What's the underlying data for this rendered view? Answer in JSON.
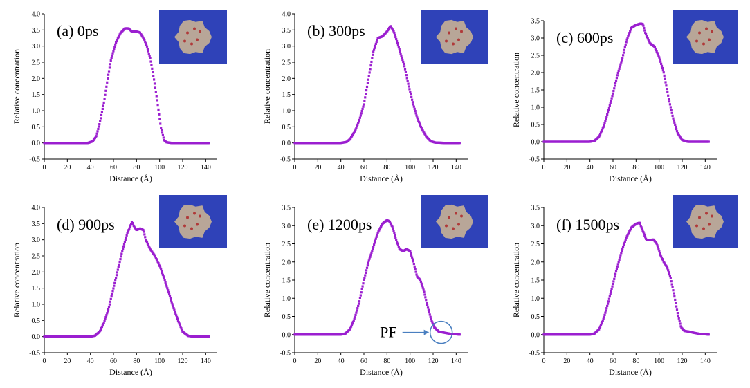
{
  "colors": {
    "series": "#9b1fd0",
    "inset_bg": "#2f42b8",
    "inset_blob": "#b8a698",
    "annotation": "#4a7fc0",
    "axis": "#000000"
  },
  "chart_data": [
    {
      "type": "scatter",
      "title": "(a) 0ps",
      "xlabel": "Distance (Å)",
      "ylabel": "Relative concentration",
      "xlim": [
        0,
        150
      ],
      "ylim": [
        -0.5,
        4.0
      ],
      "xticks": [
        0,
        20,
        40,
        60,
        80,
        100,
        120,
        140
      ],
      "xtick_labels": [
        "0",
        "20",
        "40",
        "60",
        "80",
        "100",
        "120",
        "140"
      ],
      "yticks": [
        -0.5,
        0.0,
        0.5,
        1.0,
        1.5,
        2.0,
        2.5,
        3.0,
        3.5,
        4.0
      ],
      "ytick_labels": [
        "-0.5",
        "0.0",
        "0.5",
        "1.0",
        "1.5",
        "2.0",
        "2.5",
        "3.0",
        "3.5",
        "4.0"
      ],
      "series": [
        {
          "name": "Relative concentration",
          "x": [
            0,
            10,
            20,
            30,
            38,
            42,
            45,
            48,
            52,
            55,
            58,
            62,
            66,
            70,
            73,
            76,
            80,
            83,
            86,
            89,
            92,
            95,
            98,
            101,
            104,
            106,
            110,
            120,
            130,
            143
          ],
          "y": [
            0,
            0,
            0,
            0,
            0,
            0.05,
            0.2,
            0.6,
            1.3,
            2.0,
            2.6,
            3.1,
            3.4,
            3.55,
            3.55,
            3.45,
            3.45,
            3.42,
            3.25,
            3.0,
            2.6,
            2.0,
            1.3,
            0.5,
            0.08,
            0.02,
            0,
            0,
            0,
            0
          ]
        }
      ],
      "inset": true
    },
    {
      "type": "scatter",
      "title": "(b) 300ps",
      "xlabel": "Distance (Å)",
      "ylabel": "Relative concentration",
      "xlim": [
        0,
        150
      ],
      "ylim": [
        -0.5,
        4.0
      ],
      "xticks": [
        0,
        20,
        40,
        60,
        80,
        100,
        120,
        140
      ],
      "xtick_labels": [
        "0",
        "20",
        "40",
        "60",
        "80",
        "100",
        "120",
        "140"
      ],
      "yticks": [
        -0.5,
        0.0,
        0.5,
        1.0,
        1.5,
        2.0,
        2.5,
        3.0,
        3.5,
        4.0
      ],
      "ytick_labels": [
        "-0.5",
        "0.0",
        "0.5",
        "1.0",
        "1.5",
        "2.0",
        "2.5",
        "3.0",
        "3.5",
        "4.0"
      ],
      "series": [
        {
          "name": "Relative concentration",
          "x": [
            0,
            10,
            20,
            30,
            40,
            45,
            48,
            52,
            56,
            60,
            64,
            68,
            72,
            76,
            80,
            83,
            86,
            89,
            92,
            95,
            98,
            102,
            106,
            110,
            114,
            118,
            122,
            130,
            143
          ],
          "y": [
            0,
            0,
            0,
            0,
            0,
            0.03,
            0.12,
            0.35,
            0.7,
            1.2,
            2.0,
            2.8,
            3.25,
            3.3,
            3.45,
            3.62,
            3.45,
            3.1,
            2.75,
            2.4,
            1.9,
            1.3,
            0.8,
            0.45,
            0.2,
            0.05,
            0.01,
            0,
            0
          ]
        }
      ],
      "inset": true
    },
    {
      "type": "scatter",
      "title": "(c) 600ps",
      "xlabel": "Distance (Å)",
      "ylabel": "Relative concentration",
      "xlim": [
        0,
        150
      ],
      "ylim": [
        -0.5,
        3.5
      ],
      "xticks": [
        0,
        20,
        40,
        60,
        80,
        100,
        120,
        140
      ],
      "xtick_labels": [
        "0",
        "20",
        "40",
        "60",
        "80",
        "100",
        "120",
        "140"
      ],
      "yticks": [
        -0.5,
        0.0,
        0.5,
        1.0,
        1.5,
        2.0,
        2.5,
        3.0,
        3.5
      ],
      "ytick_labels": [
        "-0.5",
        "0.0",
        "0.5",
        "1.0",
        "1.5",
        "2.0",
        "2.5",
        "3.0",
        "3.5"
      ],
      "series": [
        {
          "name": "Relative concentration",
          "x": [
            0,
            10,
            20,
            30,
            40,
            44,
            48,
            52,
            56,
            60,
            64,
            68,
            72,
            76,
            80,
            84,
            86,
            88,
            92,
            96,
            100,
            104,
            108,
            112,
            116,
            120,
            125,
            130,
            143
          ],
          "y": [
            0,
            0,
            0,
            0,
            0,
            0.03,
            0.15,
            0.45,
            0.9,
            1.4,
            1.95,
            2.4,
            2.95,
            3.3,
            3.38,
            3.42,
            3.4,
            3.15,
            2.85,
            2.75,
            2.45,
            2.0,
            1.3,
            0.7,
            0.25,
            0.05,
            0,
            0,
            0
          ]
        }
      ],
      "inset": true
    },
    {
      "type": "scatter",
      "title": "(d) 900ps",
      "xlabel": "Distance (Å)",
      "ylabel": "Relative concentration",
      "xlim": [
        0,
        150
      ],
      "ylim": [
        -0.5,
        4.0
      ],
      "xticks": [
        0,
        20,
        40,
        60,
        80,
        100,
        120,
        140
      ],
      "xtick_labels": [
        "0",
        "20",
        "40",
        "60",
        "80",
        "100",
        "120",
        "140"
      ],
      "yticks": [
        -0.5,
        0.0,
        0.5,
        1.0,
        1.5,
        2.0,
        2.5,
        3.0,
        3.5,
        4.0
      ],
      "ytick_labels": [
        "-0.5",
        "0.0",
        "0.5",
        "1.0",
        "1.5",
        "2.0",
        "2.5",
        "3.0",
        "3.5",
        "4.0"
      ],
      "series": [
        {
          "name": "Relative concentration",
          "x": [
            0,
            10,
            20,
            30,
            40,
            44,
            48,
            52,
            56,
            60,
            64,
            68,
            72,
            76,
            78,
            80,
            83,
            86,
            88,
            92,
            96,
            100,
            104,
            108,
            112,
            116,
            120,
            125,
            130,
            143
          ],
          "y": [
            0,
            0,
            0,
            0,
            0,
            0.03,
            0.15,
            0.45,
            0.9,
            1.5,
            2.1,
            2.7,
            3.2,
            3.55,
            3.4,
            3.3,
            3.35,
            3.3,
            3.0,
            2.7,
            2.5,
            2.2,
            1.8,
            1.35,
            0.9,
            0.5,
            0.15,
            0.02,
            0,
            0
          ]
        }
      ],
      "inset": true
    },
    {
      "type": "scatter",
      "title": "(e) 1200ps",
      "xlabel": "Distance (Å)",
      "ylabel": "Relative concentration",
      "xlim": [
        0,
        150
      ],
      "ylim": [
        -0.5,
        3.5
      ],
      "xticks": [
        0,
        20,
        40,
        60,
        80,
        100,
        120,
        140
      ],
      "xtick_labels": [
        "0",
        "20",
        "40",
        "60",
        "80",
        "100",
        "120",
        "140"
      ],
      "yticks": [
        -0.5,
        0.0,
        0.5,
        1.0,
        1.5,
        2.0,
        2.5,
        3.0,
        3.5
      ],
      "ytick_labels": [
        "-0.5",
        "0.0",
        "0.5",
        "1.0",
        "1.5",
        "2.0",
        "2.5",
        "3.0",
        "3.5"
      ],
      "series": [
        {
          "name": "Relative concentration",
          "x": [
            0,
            10,
            20,
            30,
            40,
            44,
            48,
            52,
            56,
            60,
            64,
            68,
            72,
            76,
            80,
            82,
            85,
            88,
            91,
            94,
            97,
            100,
            103,
            106,
            109,
            112,
            115,
            118,
            121,
            125,
            130,
            135,
            143
          ],
          "y": [
            0,
            0,
            0,
            0,
            0,
            0.03,
            0.15,
            0.45,
            0.9,
            1.5,
            2.0,
            2.4,
            2.8,
            3.05,
            3.15,
            3.12,
            2.95,
            2.6,
            2.35,
            2.3,
            2.35,
            2.3,
            2.0,
            1.6,
            1.5,
            1.2,
            0.8,
            0.45,
            0.2,
            0.08,
            0.05,
            0.02,
            0
          ]
        }
      ],
      "inset": true,
      "annotation": {
        "text": "PF",
        "at_x": 127,
        "at_y": 0.06
      }
    },
    {
      "type": "scatter",
      "title": "(f) 1500ps",
      "xlabel": "Distance (Å)",
      "ylabel": "Relative concentration",
      "xlim": [
        0,
        150
      ],
      "ylim": [
        -0.5,
        3.5
      ],
      "xticks": [
        0,
        20,
        40,
        60,
        80,
        100,
        120,
        140
      ],
      "xtick_labels": [
        "0",
        "20",
        "40",
        "60",
        "80",
        "100",
        "120",
        "140"
      ],
      "yticks": [
        -0.5,
        0.0,
        0.5,
        1.0,
        1.5,
        2.0,
        2.5,
        3.0,
        3.5
      ],
      "ytick_labels": [
        "-0.5",
        "0.0",
        "0.5",
        "1.0",
        "1.5",
        "2.0",
        "2.5",
        "3.0",
        "3.5"
      ],
      "series": [
        {
          "name": "Relative concentration",
          "x": [
            0,
            10,
            20,
            30,
            40,
            44,
            48,
            52,
            56,
            60,
            64,
            68,
            72,
            76,
            80,
            83,
            86,
            89,
            92,
            95,
            98,
            101,
            104,
            107,
            110,
            113,
            116,
            119,
            122,
            126,
            130,
            135,
            143
          ],
          "y": [
            0,
            0,
            0,
            0,
            0,
            0.03,
            0.15,
            0.45,
            0.9,
            1.4,
            1.9,
            2.35,
            2.7,
            2.95,
            3.05,
            3.08,
            2.85,
            2.6,
            2.6,
            2.62,
            2.5,
            2.2,
            2.0,
            1.85,
            1.55,
            1.1,
            0.6,
            0.2,
            0.1,
            0.08,
            0.05,
            0.02,
            0
          ]
        }
      ],
      "inset": true
    }
  ]
}
